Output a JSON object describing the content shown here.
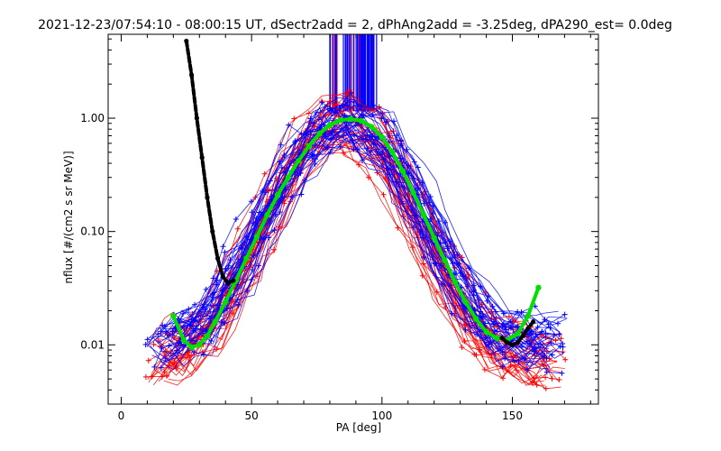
{
  "chart_data": {
    "type": "line",
    "title": "2021-12-23/07:54:10 - 08:00:15 UT, dSectr2add = 2, dPhAng2add = -3.25deg, dPA290_est=   0.0deg",
    "xlabel": "PA [deg]",
    "ylabel": "nflux [#/(cm2 s sr MeV)]",
    "xlim": [
      -5,
      183
    ],
    "ylim": [
      0.003,
      5.5
    ],
    "yscale": "log",
    "x_ticks": [
      0,
      50,
      100,
      150
    ],
    "x_tick_labels": [
      "0",
      "50",
      "100",
      "150"
    ],
    "y_ticks": [
      0.01,
      0.1,
      1.0
    ],
    "y_tick_labels": [
      "0.01",
      "0.10",
      "1.00"
    ],
    "grid": false,
    "series": [
      {
        "color": "#ff0000",
        "style": "thin lines with plus markers",
        "x": [
          15,
          20,
          25,
          30,
          35,
          40,
          45,
          50,
          55,
          60,
          65,
          70,
          75,
          80,
          85,
          90,
          95,
          100,
          105,
          110,
          115,
          120,
          125,
          130,
          135,
          140,
          145,
          150,
          155,
          160,
          165
        ],
        "y": [
          0.008,
          0.009,
          0.01,
          0.012,
          0.016,
          0.025,
          0.04,
          0.07,
          0.12,
          0.2,
          0.35,
          0.55,
          0.75,
          0.9,
          0.95,
          0.9,
          0.75,
          0.55,
          0.35,
          0.2,
          0.12,
          0.07,
          0.04,
          0.025,
          0.016,
          0.012,
          0.01,
          0.009,
          0.008,
          0.008,
          0.007
        ]
      },
      {
        "color": "#0000ff",
        "style": "thin lines with plus markers",
        "x": [
          15,
          20,
          25,
          30,
          35,
          40,
          45,
          50,
          55,
          60,
          65,
          70,
          75,
          80,
          85,
          90,
          95,
          100,
          105,
          110,
          115,
          120,
          125,
          130,
          135,
          140,
          145,
          150,
          155,
          160,
          165
        ],
        "y": [
          0.011,
          0.012,
          0.013,
          0.016,
          0.022,
          0.034,
          0.055,
          0.09,
          0.15,
          0.25,
          0.4,
          0.6,
          0.8,
          0.92,
          0.95,
          0.92,
          0.8,
          0.6,
          0.4,
          0.25,
          0.15,
          0.09,
          0.055,
          0.034,
          0.022,
          0.016,
          0.013,
          0.012,
          0.012,
          0.011,
          0.011
        ]
      },
      {
        "color": "#00e000",
        "style": "thick line with filled circles",
        "x": [
          20,
          24,
          27,
          30,
          33,
          36,
          40,
          44,
          48,
          52,
          56,
          60,
          64,
          68,
          72,
          76,
          80,
          84,
          88,
          92,
          96,
          100,
          104,
          108,
          112,
          116,
          120,
          124,
          128,
          132,
          136,
          140,
          144,
          148,
          152,
          156,
          160
        ],
        "y": [
          0.018,
          0.011,
          0.0095,
          0.01,
          0.012,
          0.016,
          0.024,
          0.037,
          0.058,
          0.09,
          0.14,
          0.21,
          0.3,
          0.42,
          0.57,
          0.73,
          0.87,
          0.96,
          0.98,
          0.95,
          0.84,
          0.68,
          0.5,
          0.34,
          0.22,
          0.14,
          0.088,
          0.056,
          0.036,
          0.024,
          0.017,
          0.013,
          0.0115,
          0.011,
          0.0125,
          0.018,
          0.032
        ]
      },
      {
        "color": "#000000",
        "style": "thick dashed line with filled circles",
        "x": [
          25,
          27,
          29,
          31,
          33,
          35,
          37,
          39,
          41,
          43
        ],
        "y": [
          4.8,
          2.4,
          1.0,
          0.45,
          0.2,
          0.1,
          0.058,
          0.04,
          0.035,
          0.037
        ]
      },
      {
        "color": "#000000",
        "style": "thick dashed line with filled circles",
        "x": [
          146,
          148,
          150,
          152,
          154,
          156,
          158
        ],
        "y": [
          0.0115,
          0.0105,
          0.01,
          0.0105,
          0.012,
          0.014,
          0.016
        ]
      }
    ],
    "saturated_band": {
      "x_range": [
        80,
        98
      ],
      "y_min": 1.15,
      "note": "vertical off-scale strokes"
    }
  }
}
